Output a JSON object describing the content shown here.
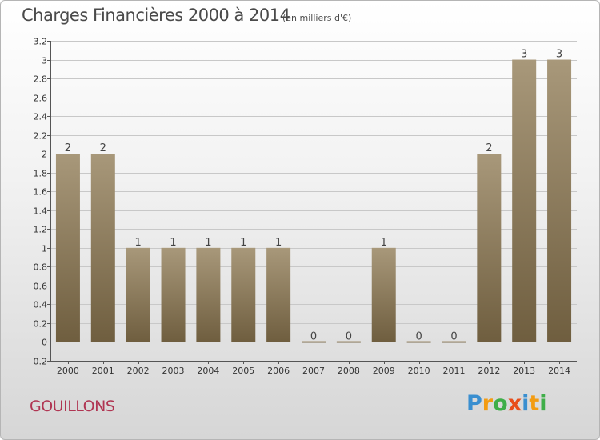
{
  "title": "Charges Financières 2000 à 2014",
  "subtitle": "(en milliers d'€)",
  "commune": "GOUILLONS",
  "logo": {
    "text": "Proxiti",
    "letters": [
      "P",
      "r",
      "o",
      "x",
      "i",
      "t",
      "i"
    ],
    "colors": [
      "#3a8fd0",
      "#f39c12",
      "#3fae49",
      "#e84e1b",
      "#3a8fd0",
      "#f39c12",
      "#3fae49"
    ]
  },
  "colors": {
    "bar_top": "#a8987a",
    "bar_bottom": "#6f5e3f",
    "grid": "#c8c8c8",
    "axis_text": "#333333"
  },
  "chart_data": {
    "type": "bar",
    "categories": [
      "2000",
      "2001",
      "2002",
      "2003",
      "2004",
      "2005",
      "2006",
      "2007",
      "2008",
      "2009",
      "2010",
      "2011",
      "2012",
      "2013",
      "2014"
    ],
    "values": [
      2,
      2,
      1,
      1,
      1,
      1,
      1,
      0,
      0,
      1,
      0,
      0,
      2,
      3,
      3
    ],
    "data_labels": [
      "2",
      "2",
      "1",
      "1",
      "1",
      "1",
      "1",
      "0",
      "0",
      "1",
      "0",
      "0",
      "2",
      "3",
      "3"
    ],
    "ylim": [
      -0.2,
      3.2
    ],
    "yticks": [
      -0.2,
      0,
      0.2,
      0.4,
      0.6,
      0.8,
      1,
      1.2,
      1.4,
      1.6,
      1.8,
      2,
      2.2,
      2.4,
      2.6,
      2.8,
      3,
      3.2
    ],
    "ytick_labels": [
      "-0.2",
      "0",
      "0.2",
      "0.4",
      "0.6",
      "0.8",
      "1",
      "1.2",
      "1.4",
      "1.6",
      "1.8",
      "2",
      "2.2",
      "2.4",
      "2.6",
      "2.8",
      "3",
      "3.2"
    ],
    "grid": true,
    "legend": "none"
  }
}
